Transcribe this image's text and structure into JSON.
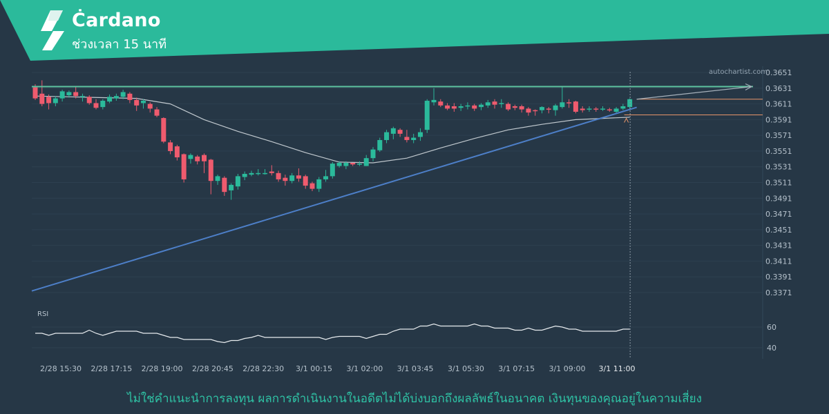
{
  "header": {
    "title": "Ċardano",
    "subtitle": "ช่วงเวลา 15 นาที"
  },
  "brand": "autochartist.com",
  "disclaimer": "ไม่ใช่คำแนะนำการลงทุน ผลการดำเนินงานในอดีตไม่ได้บ่งบอกถึงผลลัพธ์ในอนาคต เงินทุนของคุณอยู่ในความเสี่ยง",
  "colors": {
    "background": "#263746",
    "banner": "#2bba9b",
    "bullish": "#2bba9b",
    "bearish": "#ef5b6e",
    "resistance": "#5ec4a0",
    "support_trendline": "#4d7fc8",
    "forecast_levels": "#e8956a",
    "moving_average": "#d3d9de",
    "rsi_line": "#e8ecef",
    "axis_text": "#b6c2cc",
    "grid": "#2e4050"
  },
  "chart_data": {
    "type": "candlestick",
    "instrument": "Cardano",
    "timeframe": "15 นาที",
    "y_ticks": [
      "0.3651",
      "0.3631",
      "0.3611",
      "0.3591",
      "0.3571",
      "0.3551",
      "0.3531",
      "0.3511",
      "0.3491",
      "0.3471",
      "0.3451",
      "0.3431",
      "0.3411",
      "0.3391",
      "0.3371"
    ],
    "ylim": [
      0.3357,
      0.3655
    ],
    "x_ticks": [
      "2/28 15:30",
      "2/28 17:15",
      "2/28 19:00",
      "2/28 20:45",
      "2/28 22:30",
      "3/1 00:15",
      "3/1 02:00",
      "3/1 03:45",
      "3/1 05:30",
      "3/1 07:15",
      "3/1 09:00",
      "3/1 11:00"
    ],
    "candles": [
      [
        0.3632,
        0.3618,
        0.3636,
        0.3616
      ],
      [
        0.3624,
        0.3611,
        0.3641,
        0.3608
      ],
      [
        0.362,
        0.3612,
        0.3623,
        0.3604
      ],
      [
        0.3612,
        0.3618,
        0.3621,
        0.3608
      ],
      [
        0.3618,
        0.3627,
        0.3629,
        0.3614
      ],
      [
        0.3622,
        0.3626,
        0.3628,
        0.3619
      ],
      [
        0.3626,
        0.3621,
        0.3633,
        0.3618
      ],
      [
        0.362,
        0.3621,
        0.3624,
        0.3614
      ],
      [
        0.362,
        0.3612,
        0.3622,
        0.361
      ],
      [
        0.3612,
        0.3606,
        0.3617,
        0.3604
      ],
      [
        0.3607,
        0.3615,
        0.3617,
        0.3604
      ],
      [
        0.3614,
        0.362,
        0.3623,
        0.3612
      ],
      [
        0.3618,
        0.3621,
        0.3624,
        0.3615
      ],
      [
        0.362,
        0.3626,
        0.3629,
        0.3617
      ],
      [
        0.3624,
        0.3616,
        0.3626,
        0.3612
      ],
      [
        0.3616,
        0.3609,
        0.3619,
        0.3602
      ],
      [
        0.3612,
        0.3615,
        0.3617,
        0.3605
      ],
      [
        0.3611,
        0.3605,
        0.3613,
        0.36
      ],
      [
        0.3604,
        0.3596,
        0.3607,
        0.3594
      ],
      [
        0.3593,
        0.3563,
        0.3594,
        0.3561
      ],
      [
        0.3562,
        0.3551,
        0.3565,
        0.3547
      ],
      [
        0.3557,
        0.3543,
        0.3559,
        0.3539
      ],
      [
        0.3547,
        0.3515,
        0.3548,
        0.3511
      ],
      [
        0.3541,
        0.3546,
        0.3548,
        0.3535
      ],
      [
        0.3544,
        0.3538,
        0.3546,
        0.3534
      ],
      [
        0.3546,
        0.3538,
        0.3548,
        0.3523
      ],
      [
        0.354,
        0.3513,
        0.3541,
        0.3496
      ],
      [
        0.3513,
        0.3519,
        0.3521,
        0.3508
      ],
      [
        0.3517,
        0.3499,
        0.3519,
        0.3494
      ],
      [
        0.3501,
        0.3508,
        0.351,
        0.3489
      ],
      [
        0.3506,
        0.3519,
        0.3522,
        0.3502
      ],
      [
        0.3518,
        0.3522,
        0.3525,
        0.3514
      ],
      [
        0.3521,
        0.3523,
        0.3526,
        0.3519
      ],
      [
        0.3523,
        0.3523,
        0.3528,
        0.352
      ],
      [
        0.3523,
        0.3523,
        0.3528,
        0.3521
      ],
      [
        0.3525,
        0.3523,
        0.3533,
        0.352
      ],
      [
        0.3523,
        0.3515,
        0.3526,
        0.3512
      ],
      [
        0.3517,
        0.3513,
        0.3521,
        0.3507
      ],
      [
        0.3513,
        0.352,
        0.3523,
        0.351
      ],
      [
        0.352,
        0.3516,
        0.3529,
        0.3512
      ],
      [
        0.3519,
        0.3507,
        0.3521,
        0.3503
      ],
      [
        0.351,
        0.3503,
        0.3512,
        0.35
      ],
      [
        0.3503,
        0.3515,
        0.3518,
        0.3499
      ],
      [
        0.3515,
        0.3519,
        0.3527,
        0.3512
      ],
      [
        0.3519,
        0.3535,
        0.3537,
        0.3516
      ],
      [
        0.3532,
        0.3536,
        0.3538,
        0.353
      ],
      [
        0.3532,
        0.3536,
        0.3538,
        0.3528
      ],
      [
        0.3536,
        0.3534,
        0.3536,
        0.3532
      ],
      [
        0.3534,
        0.3535,
        0.3538,
        0.3532
      ],
      [
        0.3532,
        0.3542,
        0.3546,
        0.3532
      ],
      [
        0.3542,
        0.3553,
        0.3556,
        0.3538
      ],
      [
        0.3552,
        0.3565,
        0.3568,
        0.355
      ],
      [
        0.3565,
        0.3575,
        0.3578,
        0.3561
      ],
      [
        0.3573,
        0.358,
        0.3582,
        0.3566
      ],
      [
        0.3578,
        0.3573,
        0.358,
        0.3569
      ],
      [
        0.3569,
        0.3565,
        0.3578,
        0.3562
      ],
      [
        0.3565,
        0.3568,
        0.3573,
        0.3561
      ],
      [
        0.3569,
        0.3575,
        0.358,
        0.3564
      ],
      [
        0.3578,
        0.3615,
        0.3617,
        0.3574
      ],
      [
        0.3613,
        0.3616,
        0.3631,
        0.3609
      ],
      [
        0.3614,
        0.3609,
        0.3617,
        0.3607
      ],
      [
        0.3609,
        0.3605,
        0.3612,
        0.3603
      ],
      [
        0.3608,
        0.3605,
        0.3612,
        0.3601
      ],
      [
        0.3606,
        0.3608,
        0.3611,
        0.3602
      ],
      [
        0.3609,
        0.3609,
        0.3613,
        0.3604
      ],
      [
        0.3609,
        0.3605,
        0.3611,
        0.3602
      ],
      [
        0.3607,
        0.361,
        0.3612,
        0.3603
      ],
      [
        0.3609,
        0.3613,
        0.3616,
        0.3606
      ],
      [
        0.3614,
        0.361,
        0.3617,
        0.3605
      ],
      [
        0.3612,
        0.3612,
        0.3617,
        0.3606
      ],
      [
        0.3611,
        0.3604,
        0.3613,
        0.3602
      ],
      [
        0.3608,
        0.3606,
        0.361,
        0.3603
      ],
      [
        0.3608,
        0.3604,
        0.361,
        0.36
      ],
      [
        0.3605,
        0.36,
        0.3607,
        0.3596
      ],
      [
        0.3603,
        0.3602,
        0.3604,
        0.3596
      ],
      [
        0.3603,
        0.3607,
        0.3608,
        0.3599
      ],
      [
        0.3605,
        0.3604,
        0.3607,
        0.3599
      ],
      [
        0.3603,
        0.3609,
        0.3611,
        0.3596
      ],
      [
        0.3607,
        0.3613,
        0.3633,
        0.3605
      ],
      [
        0.3613,
        0.3612,
        0.3617,
        0.3606
      ],
      [
        0.3614,
        0.3601,
        0.3615,
        0.3599
      ],
      [
        0.3605,
        0.3603,
        0.3608,
        0.36
      ],
      [
        0.3604,
        0.3605,
        0.3608,
        0.3601
      ],
      [
        0.3605,
        0.3604,
        0.3607,
        0.3601
      ],
      [
        0.3604,
        0.3605,
        0.3608,
        0.3602
      ],
      [
        0.3604,
        0.3603,
        0.3606,
        0.3601
      ],
      [
        0.3601,
        0.3605,
        0.3607,
        0.3599
      ],
      [
        0.3605,
        0.3608,
        0.3611,
        0.3603
      ],
      [
        0.3607,
        0.3617,
        0.3618,
        0.3605
      ]
    ],
    "moving_average": [
      [
        0,
        0.3621
      ],
      [
        5,
        0.362
      ],
      [
        10,
        0.3619
      ],
      [
        15,
        0.3618
      ],
      [
        20,
        0.3611
      ],
      [
        25,
        0.3591
      ],
      [
        30,
        0.3576
      ],
      [
        35,
        0.3563
      ],
      [
        40,
        0.3549
      ],
      [
        45,
        0.3537
      ],
      [
        50,
        0.3536
      ],
      [
        55,
        0.3542
      ],
      [
        60,
        0.3555
      ],
      [
        65,
        0.3567
      ],
      [
        70,
        0.3578
      ],
      [
        75,
        0.3585
      ],
      [
        80,
        0.3591
      ],
      [
        85,
        0.3593
      ],
      [
        88,
        0.3594
      ]
    ],
    "trendline": {
      "from": [
        0,
        0.3373
      ],
      "to": [
        88,
        0.3604
      ]
    },
    "resistance": 0.3633,
    "forecast": {
      "arrow_from": [
        88,
        0.3617
      ],
      "arrow_to": [
        0.3633
      ],
      "upper_level": 0.3617,
      "lower_level": 0.3597
    },
    "rsi": {
      "label": "RSI",
      "y_ticks": [
        "60",
        "40"
      ],
      "ylim": [
        35,
        75
      ],
      "values": [
        54,
        54,
        52,
        54,
        54,
        54,
        54,
        54,
        57,
        54,
        52,
        54,
        56,
        56,
        56,
        56,
        54,
        54,
        54,
        52,
        50,
        50,
        48,
        48,
        48,
        48,
        48,
        46,
        45,
        47,
        47,
        49,
        50,
        52,
        50,
        50,
        50,
        50,
        50,
        50,
        50,
        50,
        50,
        48,
        50,
        51,
        51,
        51,
        51,
        49,
        51,
        53,
        53,
        56,
        58,
        58,
        58,
        61,
        61,
        63,
        61,
        61,
        61,
        61,
        61,
        63,
        61,
        61,
        59,
        59,
        59,
        57,
        57,
        59,
        57,
        57,
        59,
        61,
        60,
        58,
        58,
        56,
        56,
        56,
        56,
        56,
        56,
        58,
        58
      ]
    }
  }
}
